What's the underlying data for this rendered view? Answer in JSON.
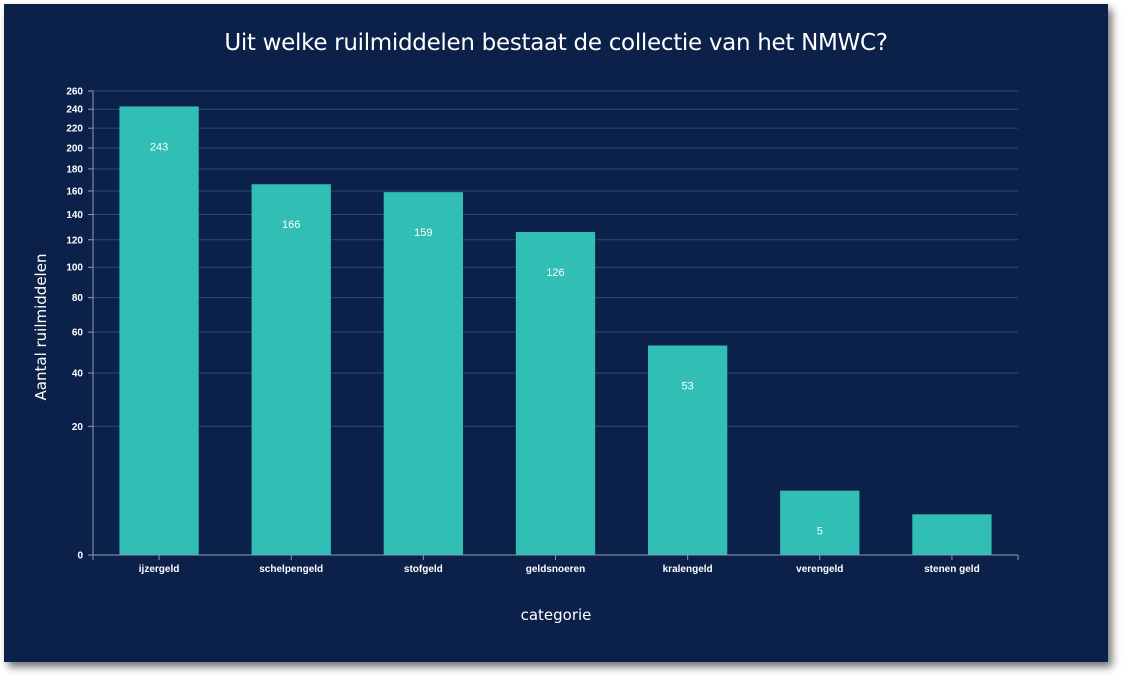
{
  "chart_data": {
    "type": "bar",
    "title": "Uit welke ruilmiddelen bestaat de collectie van het NMWC?",
    "xlabel": "categorie",
    "ylabel": "Aantal ruilmiddelen",
    "categories": [
      "ijzergeld",
      "schelpengeld",
      "stofgeld",
      "geldsnoeren",
      "kralengeld",
      "verengeld",
      "stenen geld"
    ],
    "values": [
      243,
      166,
      159,
      126,
      53,
      5,
      2
    ],
    "data_labels": [
      "243",
      "166",
      "159",
      "126",
      "53",
      "5",
      ""
    ],
    "y_scale": "sqrt",
    "ylim": [
      0,
      260
    ],
    "yticks": [
      0,
      20,
      40,
      60,
      80,
      100,
      120,
      140,
      160,
      180,
      200,
      220,
      240,
      260
    ],
    "grid": true,
    "colors": {
      "background": "#0b2149",
      "bar": "#31beb5",
      "grid": "#2f4a78",
      "text": "#ffffff"
    }
  }
}
